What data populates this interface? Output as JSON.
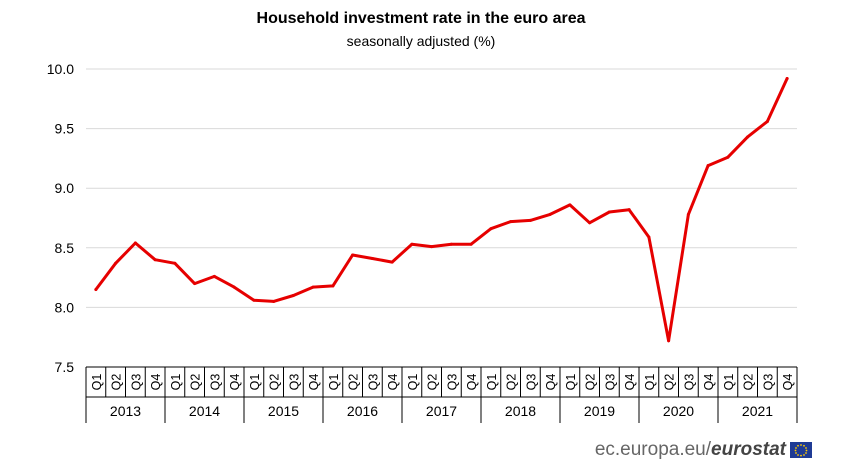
{
  "header": {
    "title": "Household  investment  rate in the euro area",
    "subtitle": "seasonally adjusted (%)"
  },
  "footer": {
    "site": "ec.europa.eu/",
    "brand": "eurostat"
  },
  "colors": {
    "line": "#e60000",
    "grid": "#d9d9d9",
    "axis": "#000000",
    "flag": "#1f3b95",
    "stars": "#ffcc00"
  },
  "chart_data": {
    "type": "line",
    "title": "Household  investment  rate in the euro area",
    "subtitle": "seasonally adjusted (%)",
    "ylim": [
      7.5,
      10.0
    ],
    "yticks": [
      "7.5",
      "8.0",
      "8.5",
      "9.0",
      "9.5",
      "10.0"
    ],
    "grid": true,
    "years": [
      "2013",
      "2014",
      "2015",
      "2016",
      "2017",
      "2018",
      "2019",
      "2020",
      "2021"
    ],
    "quarters": [
      "Q1",
      "Q2",
      "Q3",
      "Q4"
    ],
    "series": [
      {
        "name": "Household investment rate",
        "values": [
          8.15,
          8.37,
          8.54,
          8.4,
          8.37,
          8.2,
          8.26,
          8.17,
          8.06,
          8.05,
          8.1,
          8.17,
          8.18,
          8.44,
          8.41,
          8.38,
          8.53,
          8.51,
          8.53,
          8.53,
          8.66,
          8.72,
          8.73,
          8.78,
          8.86,
          8.71,
          8.8,
          8.82,
          8.59,
          7.72,
          8.78,
          9.19,
          9.26,
          9.43,
          9.56,
          9.92
        ]
      }
    ]
  }
}
